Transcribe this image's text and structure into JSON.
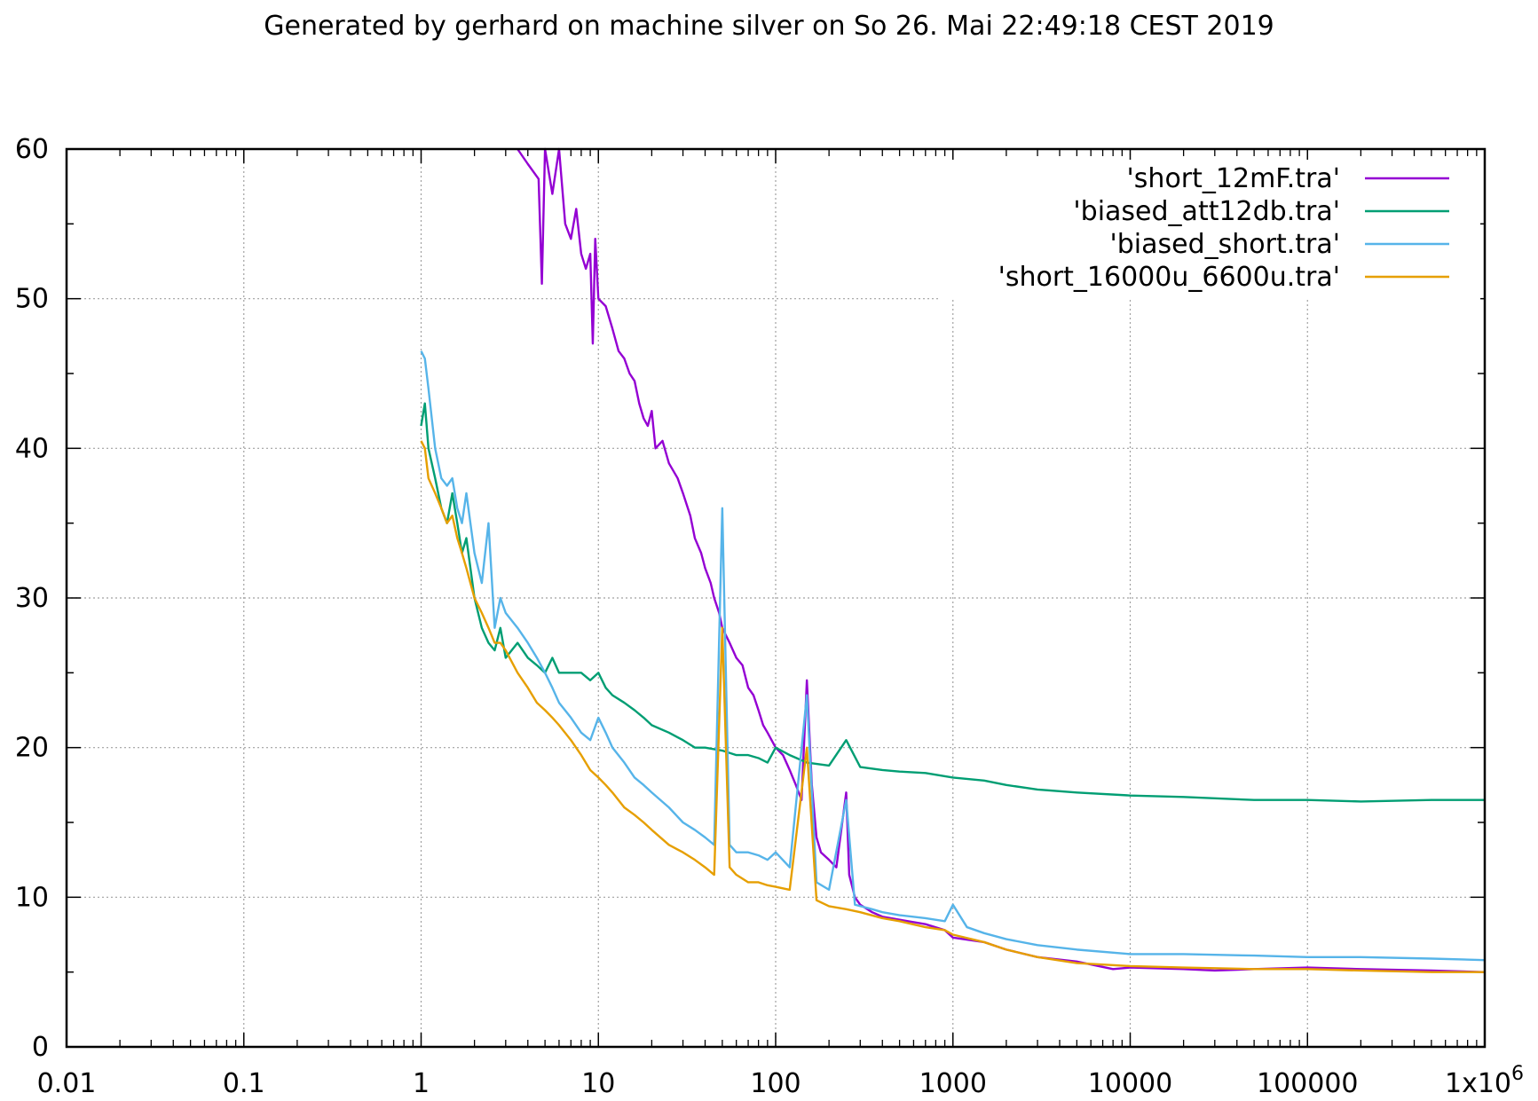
{
  "chart_data": {
    "type": "line",
    "title": "Generated by gerhard on machine silver on So 26. Mai 22:49:18 CEST 2019",
    "x_scale": "log",
    "xlim": [
      0.01,
      1000000
    ],
    "ylim": [
      0,
      60
    ],
    "grid": true,
    "legend_position": "top-right",
    "x_ticks": [
      {
        "value": 0.01,
        "label": "0.01"
      },
      {
        "value": 0.1,
        "label": "0.1"
      },
      {
        "value": 1,
        "label": "1"
      },
      {
        "value": 10,
        "label": "10"
      },
      {
        "value": 100,
        "label": "100"
      },
      {
        "value": 1000,
        "label": "1000"
      },
      {
        "value": 10000,
        "label": "10000"
      },
      {
        "value": 100000,
        "label": "100000"
      }
    ],
    "x_last_tick": {
      "value": 1000000,
      "base": "1x10",
      "exponent": "6"
    },
    "y_ticks": [
      {
        "value": 0,
        "label": "0"
      },
      {
        "value": 10,
        "label": "10"
      },
      {
        "value": 20,
        "label": "20"
      },
      {
        "value": 30,
        "label": "30"
      },
      {
        "value": 40,
        "label": "40"
      },
      {
        "value": 50,
        "label": "50"
      },
      {
        "value": 60,
        "label": "60"
      }
    ],
    "series": [
      {
        "name": "'short_12mF.tra'",
        "color": "#9400d3",
        "points": [
          [
            3.5,
            60
          ],
          [
            4,
            59
          ],
          [
            4.6,
            58
          ],
          [
            4.8,
            51
          ],
          [
            5,
            60
          ],
          [
            5.5,
            57
          ],
          [
            6,
            60
          ],
          [
            6.5,
            55
          ],
          [
            7,
            54
          ],
          [
            7.5,
            56
          ],
          [
            8,
            53
          ],
          [
            8.5,
            52
          ],
          [
            9,
            53
          ],
          [
            9.3,
            47
          ],
          [
            9.6,
            54
          ],
          [
            10,
            50
          ],
          [
            11,
            49.5
          ],
          [
            12,
            48
          ],
          [
            13,
            46.5
          ],
          [
            14,
            46
          ],
          [
            15,
            45
          ],
          [
            16,
            44.5
          ],
          [
            17,
            43
          ],
          [
            18,
            42
          ],
          [
            19,
            41.5
          ],
          [
            20,
            42.5
          ],
          [
            21,
            40
          ],
          [
            23,
            40.5
          ],
          [
            25,
            39
          ],
          [
            28,
            38
          ],
          [
            30,
            37
          ],
          [
            33,
            35.5
          ],
          [
            35,
            34
          ],
          [
            38,
            33
          ],
          [
            40,
            32
          ],
          [
            43,
            31
          ],
          [
            45,
            30
          ],
          [
            48,
            29
          ],
          [
            50,
            28
          ],
          [
            55,
            27
          ],
          [
            60,
            26
          ],
          [
            65,
            25.5
          ],
          [
            70,
            24
          ],
          [
            75,
            23.5
          ],
          [
            80,
            22.5
          ],
          [
            85,
            21.5
          ],
          [
            90,
            21
          ],
          [
            100,
            20
          ],
          [
            110,
            19.5
          ],
          [
            120,
            18.5
          ],
          [
            130,
            17.5
          ],
          [
            140,
            16.5
          ],
          [
            150,
            24.5
          ],
          [
            160,
            17.5
          ],
          [
            170,
            14
          ],
          [
            180,
            13
          ],
          [
            200,
            12.5
          ],
          [
            220,
            12
          ],
          [
            250,
            17
          ],
          [
            260,
            11.5
          ],
          [
            280,
            10
          ],
          [
            300,
            9.5
          ],
          [
            350,
            9
          ],
          [
            400,
            8.7
          ],
          [
            500,
            8.5
          ],
          [
            700,
            8.2
          ],
          [
            900,
            7.8
          ],
          [
            1000,
            7.3
          ],
          [
            1500,
            7
          ],
          [
            2000,
            6.5
          ],
          [
            3000,
            6
          ],
          [
            5000,
            5.7
          ],
          [
            8000,
            5.2
          ],
          [
            10000,
            5.3
          ],
          [
            20000,
            5.2
          ],
          [
            30000,
            5.1
          ],
          [
            50000,
            5.2
          ],
          [
            100000,
            5.3
          ],
          [
            200000,
            5.2
          ],
          [
            500000,
            5.1
          ],
          [
            1000000,
            5
          ]
        ]
      },
      {
        "name": "'biased_att12db.tra'",
        "color": "#009e73",
        "points": [
          [
            1,
            41.5
          ],
          [
            1.05,
            43
          ],
          [
            1.1,
            40
          ],
          [
            1.2,
            38
          ],
          [
            1.3,
            36
          ],
          [
            1.4,
            35
          ],
          [
            1.5,
            37
          ],
          [
            1.6,
            35
          ],
          [
            1.7,
            33
          ],
          [
            1.8,
            34
          ],
          [
            2,
            30
          ],
          [
            2.2,
            28
          ],
          [
            2.4,
            27
          ],
          [
            2.6,
            26.5
          ],
          [
            2.8,
            28
          ],
          [
            3,
            26
          ],
          [
            3.5,
            27
          ],
          [
            4,
            26
          ],
          [
            4.5,
            25.5
          ],
          [
            5,
            25
          ],
          [
            5.5,
            26
          ],
          [
            6,
            25
          ],
          [
            7,
            25
          ],
          [
            8,
            25
          ],
          [
            9,
            24.5
          ],
          [
            10,
            25
          ],
          [
            11,
            24
          ],
          [
            12,
            23.5
          ],
          [
            14,
            23
          ],
          [
            16,
            22.5
          ],
          [
            18,
            22
          ],
          [
            20,
            21.5
          ],
          [
            25,
            21
          ],
          [
            30,
            20.5
          ],
          [
            35,
            20
          ],
          [
            40,
            20
          ],
          [
            50,
            19.8
          ],
          [
            60,
            19.5
          ],
          [
            70,
            19.5
          ],
          [
            80,
            19.3
          ],
          [
            90,
            19
          ],
          [
            100,
            20
          ],
          [
            120,
            19.5
          ],
          [
            150,
            19
          ],
          [
            200,
            18.8
          ],
          [
            250,
            20.5
          ],
          [
            300,
            18.7
          ],
          [
            400,
            18.5
          ],
          [
            500,
            18.4
          ],
          [
            700,
            18.3
          ],
          [
            1000,
            18
          ],
          [
            1500,
            17.8
          ],
          [
            2000,
            17.5
          ],
          [
            3000,
            17.2
          ],
          [
            5000,
            17
          ],
          [
            10000,
            16.8
          ],
          [
            20000,
            16.7
          ],
          [
            50000,
            16.5
          ],
          [
            100000,
            16.5
          ],
          [
            200000,
            16.4
          ],
          [
            500000,
            16.5
          ],
          [
            1000000,
            16.5
          ]
        ]
      },
      {
        "name": "'biased_short.tra'",
        "color": "#56b4e9",
        "points": [
          [
            1,
            46.5
          ],
          [
            1.05,
            46
          ],
          [
            1.1,
            44
          ],
          [
            1.2,
            40
          ],
          [
            1.3,
            38
          ],
          [
            1.4,
            37.5
          ],
          [
            1.5,
            38
          ],
          [
            1.6,
            36
          ],
          [
            1.7,
            35
          ],
          [
            1.8,
            37
          ],
          [
            2,
            33
          ],
          [
            2.2,
            31
          ],
          [
            2.4,
            35
          ],
          [
            2.6,
            28
          ],
          [
            2.8,
            30
          ],
          [
            3,
            29
          ],
          [
            3.5,
            28
          ],
          [
            4,
            27
          ],
          [
            4.5,
            26
          ],
          [
            5,
            25
          ],
          [
            5.5,
            24
          ],
          [
            6,
            23
          ],
          [
            7,
            22
          ],
          [
            8,
            21
          ],
          [
            9,
            20.5
          ],
          [
            10,
            22
          ],
          [
            11,
            21
          ],
          [
            12,
            20
          ],
          [
            14,
            19
          ],
          [
            16,
            18
          ],
          [
            18,
            17.5
          ],
          [
            20,
            17
          ],
          [
            25,
            16
          ],
          [
            30,
            15
          ],
          [
            35,
            14.5
          ],
          [
            40,
            14
          ],
          [
            45,
            13.5
          ],
          [
            50,
            36
          ],
          [
            55,
            13.5
          ],
          [
            60,
            13
          ],
          [
            70,
            13
          ],
          [
            80,
            12.8
          ],
          [
            90,
            12.5
          ],
          [
            100,
            13
          ],
          [
            120,
            12
          ],
          [
            150,
            23.5
          ],
          [
            170,
            11
          ],
          [
            200,
            10.5
          ],
          [
            250,
            16.5
          ],
          [
            280,
            9.5
          ],
          [
            350,
            9.2
          ],
          [
            400,
            9
          ],
          [
            500,
            8.8
          ],
          [
            700,
            8.6
          ],
          [
            900,
            8.4
          ],
          [
            1000,
            9.5
          ],
          [
            1200,
            8
          ],
          [
            1500,
            7.6
          ],
          [
            2000,
            7.2
          ],
          [
            3000,
            6.8
          ],
          [
            5000,
            6.5
          ],
          [
            10000,
            6.2
          ],
          [
            20000,
            6.2
          ],
          [
            50000,
            6.1
          ],
          [
            100000,
            6
          ],
          [
            200000,
            6
          ],
          [
            500000,
            5.9
          ],
          [
            1000000,
            5.8
          ]
        ]
      },
      {
        "name": "'short_16000u_6600u.tra'",
        "color": "#e69f00",
        "points": [
          [
            1,
            40.5
          ],
          [
            1.05,
            40
          ],
          [
            1.1,
            38
          ],
          [
            1.2,
            37
          ],
          [
            1.3,
            36
          ],
          [
            1.4,
            35
          ],
          [
            1.5,
            35.5
          ],
          [
            1.6,
            34
          ],
          [
            1.7,
            33
          ],
          [
            1.8,
            32
          ],
          [
            2,
            30
          ],
          [
            2.2,
            29
          ],
          [
            2.4,
            28
          ],
          [
            2.6,
            27
          ],
          [
            2.8,
            27
          ],
          [
            3,
            26.5
          ],
          [
            3.5,
            25
          ],
          [
            4,
            24
          ],
          [
            4.5,
            23
          ],
          [
            5,
            22.5
          ],
          [
            5.5,
            22
          ],
          [
            6,
            21.5
          ],
          [
            7,
            20.5
          ],
          [
            8,
            19.5
          ],
          [
            9,
            18.5
          ],
          [
            10,
            18
          ],
          [
            11,
            17.5
          ],
          [
            12,
            17
          ],
          [
            14,
            16
          ],
          [
            16,
            15.5
          ],
          [
            18,
            15
          ],
          [
            20,
            14.5
          ],
          [
            25,
            13.5
          ],
          [
            30,
            13
          ],
          [
            35,
            12.5
          ],
          [
            40,
            12
          ],
          [
            45,
            11.5
          ],
          [
            50,
            28
          ],
          [
            55,
            12
          ],
          [
            60,
            11.5
          ],
          [
            70,
            11
          ],
          [
            80,
            11
          ],
          [
            90,
            10.8
          ],
          [
            100,
            10.7
          ],
          [
            120,
            10.5
          ],
          [
            150,
            20
          ],
          [
            170,
            9.8
          ],
          [
            200,
            9.4
          ],
          [
            250,
            9.2
          ],
          [
            300,
            9
          ],
          [
            400,
            8.6
          ],
          [
            500,
            8.4
          ],
          [
            700,
            8
          ],
          [
            900,
            7.8
          ],
          [
            1000,
            7.5
          ],
          [
            1500,
            7
          ],
          [
            2000,
            6.5
          ],
          [
            3000,
            6
          ],
          [
            5000,
            5.6
          ],
          [
            10000,
            5.4
          ],
          [
            20000,
            5.3
          ],
          [
            50000,
            5.2
          ],
          [
            100000,
            5.2
          ],
          [
            200000,
            5.1
          ],
          [
            500000,
            5
          ],
          [
            1000000,
            5
          ]
        ]
      }
    ]
  }
}
